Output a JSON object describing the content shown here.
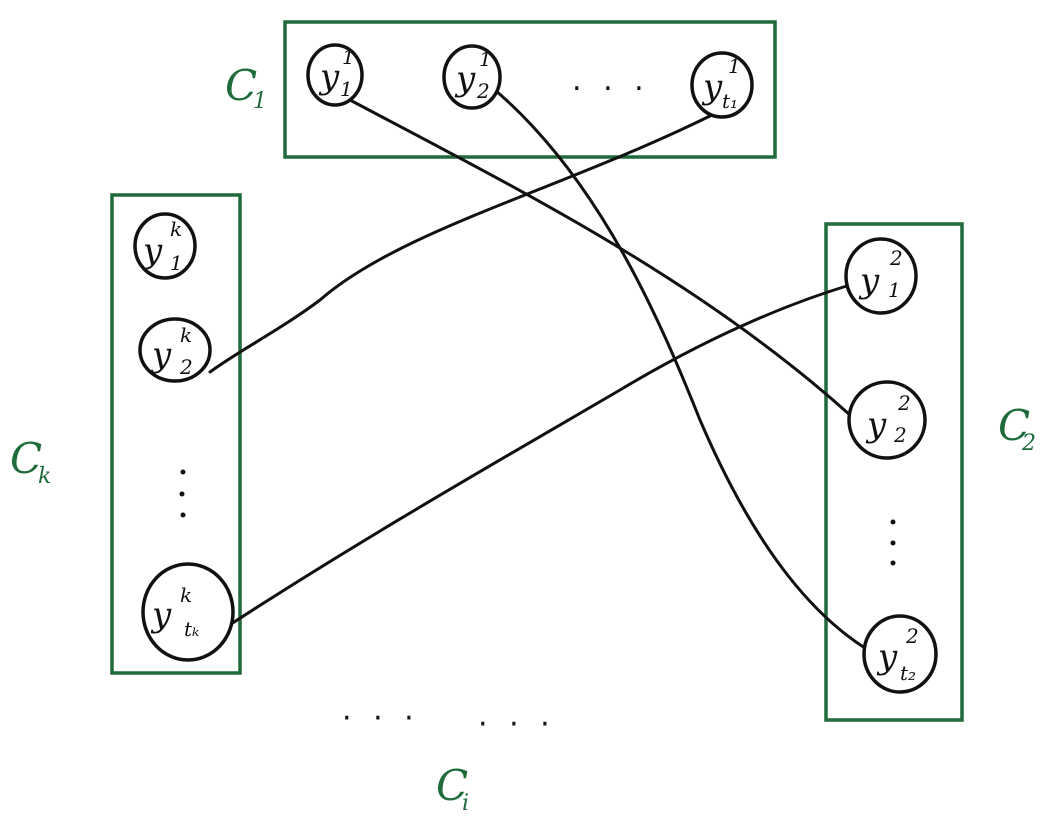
{
  "clusters": [
    {
      "id": "c1",
      "label": "C",
      "sub": "1",
      "nodes": [
        {
          "id": "c1n1",
          "var": "y",
          "sup": "1",
          "sub": "1"
        },
        {
          "id": "c1n2",
          "var": "y",
          "sup": "1",
          "sub": "2"
        },
        {
          "id": "c1n3",
          "var": "y",
          "sup": "1",
          "sub": "t₁"
        }
      ],
      "ellipsis": ". . ."
    },
    {
      "id": "ck",
      "label": "C",
      "sub": "k",
      "nodes": [
        {
          "id": "ckn1",
          "var": "y",
          "sup": "k",
          "sub": "1"
        },
        {
          "id": "ckn2",
          "var": "y",
          "sup": "k",
          "sub": "2"
        },
        {
          "id": "ckn3",
          "var": "y",
          "sup": "k",
          "sub": "tₖ"
        }
      ]
    },
    {
      "id": "c2",
      "label": "C",
      "sub": "2",
      "nodes": [
        {
          "id": "c2n1",
          "var": "y",
          "sup": "2",
          "sub": "1"
        },
        {
          "id": "c2n2",
          "var": "y",
          "sup": "2",
          "sub": "2"
        },
        {
          "id": "c2n3",
          "var": "y",
          "sup": "2",
          "sub": "t₂"
        }
      ]
    }
  ],
  "bottom": {
    "label": "C",
    "sub": "i",
    "ellipsis_left": "· · ·",
    "ellipsis_right": "· · ·"
  },
  "edges": [
    {
      "from": "c1n1",
      "to": "c2n2"
    },
    {
      "from": "c1n2",
      "to": "c2n3"
    },
    {
      "from": "c1n3",
      "to": "ckn2"
    },
    {
      "from": "ckn3",
      "to": "c2n1"
    }
  ]
}
